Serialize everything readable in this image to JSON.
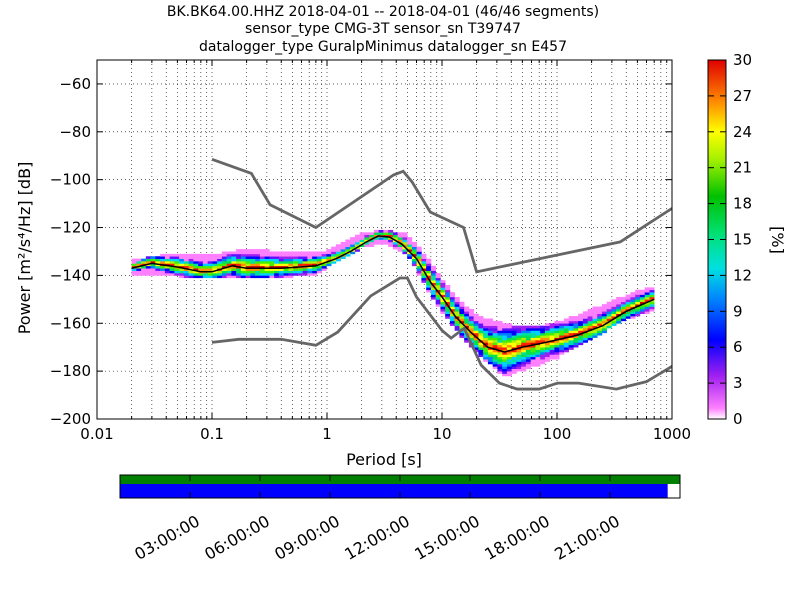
{
  "chart_data": {
    "type": "heatmap",
    "title_lines": [
      "BK.BK64.00.HHZ   2018-04-01 -- 2018-04-01  (46/46 segments)",
      "sensor_type CMG-3T sensor_sn T39747",
      "datalogger_type GuralpMinimus datalogger_sn E457"
    ],
    "xlabel": "Period [s]",
    "ylabel": "Power [m²/s⁴/Hz] [dB]",
    "xscale": "log",
    "xlim": [
      0.01,
      1000
    ],
    "ylim": [
      -200,
      -50
    ],
    "xticks": [
      {
        "value": 0.01,
        "label": "0.01"
      },
      {
        "value": 0.1,
        "label": "0.1"
      },
      {
        "value": 1,
        "label": "1"
      },
      {
        "value": 10,
        "label": "10"
      },
      {
        "value": 100,
        "label": "100"
      },
      {
        "value": 1000,
        "label": "1000"
      }
    ],
    "yticks": [
      {
        "value": -60,
        "label": "−60"
      },
      {
        "value": -80,
        "label": "−80"
      },
      {
        "value": -100,
        "label": "−100"
      },
      {
        "value": -120,
        "label": "−120"
      },
      {
        "value": -140,
        "label": "−140"
      },
      {
        "value": -160,
        "label": "−160"
      },
      {
        "value": -180,
        "label": "−180"
      },
      {
        "value": -200,
        "label": "−200"
      }
    ],
    "grid": true,
    "colorbar": {
      "label": "[%]",
      "range": [
        0,
        30
      ],
      "ticks": [
        {
          "value": 0,
          "label": "0"
        },
        {
          "value": 3,
          "label": "3"
        },
        {
          "value": 6,
          "label": "6"
        },
        {
          "value": 9,
          "label": "9"
        },
        {
          "value": 12,
          "label": "12"
        },
        {
          "value": 15,
          "label": "15"
        },
        {
          "value": 18,
          "label": "18"
        },
        {
          "value": 21,
          "label": "21"
        },
        {
          "value": 24,
          "label": "24"
        },
        {
          "value": 27,
          "label": "27"
        },
        {
          "value": 30,
          "label": "30"
        }
      ],
      "colormap": "pqlx"
    },
    "noise_models": [
      {
        "name": "high-noise-model",
        "color": "#666666",
        "points": [
          [
            0.1,
            -91.5
          ],
          [
            0.22,
            -97.4
          ],
          [
            0.32,
            -110.5
          ],
          [
            0.8,
            -120
          ],
          [
            3.8,
            -98
          ],
          [
            4.6,
            -96.5
          ],
          [
            5.5,
            -101
          ],
          [
            7.9,
            -113.5
          ],
          [
            15.4,
            -120
          ],
          [
            20,
            -138.5
          ],
          [
            354.8,
            -126
          ],
          [
            1000,
            -112
          ]
        ]
      },
      {
        "name": "low-noise-model",
        "color": "#666666",
        "points": [
          [
            0.1,
            -168
          ],
          [
            0.17,
            -166.7
          ],
          [
            0.4,
            -166.7
          ],
          [
            0.8,
            -169.2
          ],
          [
            1.24,
            -163.7
          ],
          [
            2.4,
            -148.6
          ],
          [
            4.3,
            -141.1
          ],
          [
            5,
            -141.1
          ],
          [
            6,
            -149
          ],
          [
            10,
            -163
          ],
          [
            12,
            -166.2
          ],
          [
            15.6,
            -162.1
          ],
          [
            21.9,
            -177.5
          ],
          [
            31.6,
            -185
          ],
          [
            45,
            -187.5
          ],
          [
            70,
            -187.5
          ],
          [
            101,
            -185
          ],
          [
            154,
            -185
          ],
          [
            328,
            -187.5
          ],
          [
            600,
            -184.4
          ],
          [
            1000,
            -178
          ]
        ]
      }
    ],
    "mode_curve": {
      "name": "mode",
      "points": [
        [
          0.02,
          -137
        ],
        [
          0.03,
          -135
        ],
        [
          0.05,
          -136.5
        ],
        [
          0.08,
          -138.5
        ],
        [
          0.1,
          -138.5
        ],
        [
          0.15,
          -136
        ],
        [
          0.2,
          -137
        ],
        [
          0.4,
          -137
        ],
        [
          0.8,
          -136
        ],
        [
          1.2,
          -133
        ],
        [
          1.6,
          -130
        ],
        [
          2.2,
          -126
        ],
        [
          2.8,
          -123.5
        ],
        [
          3.5,
          -124
        ],
        [
          4.5,
          -127
        ],
        [
          6,
          -133
        ],
        [
          8,
          -143
        ],
        [
          10,
          -149
        ],
        [
          13,
          -157
        ],
        [
          18,
          -164
        ],
        [
          25,
          -170
        ],
        [
          35,
          -172
        ],
        [
          50,
          -170
        ],
        [
          80,
          -168
        ],
        [
          150,
          -165
        ],
        [
          250,
          -161
        ],
        [
          400,
          -155
        ],
        [
          700,
          -150
        ]
      ]
    },
    "psd_distribution": {
      "description_spread_db_low": [
        [
          0.02,
          -139
        ],
        [
          0.05,
          -140
        ],
        [
          0.1,
          -141
        ],
        [
          0.3,
          -141
        ],
        [
          0.8,
          -139
        ],
        [
          2,
          -128
        ],
        [
          3,
          -126
        ],
        [
          5,
          -131
        ],
        [
          8,
          -148
        ],
        [
          12,
          -160
        ],
        [
          20,
          -172
        ],
        [
          35,
          -182
        ],
        [
          60,
          -178
        ],
        [
          100,
          -174
        ],
        [
          200,
          -166
        ],
        [
          400,
          -158
        ],
        [
          700,
          -154
        ]
      ],
      "description_spread_db_high": [
        [
          0.02,
          -135
        ],
        [
          0.05,
          -132
        ],
        [
          0.1,
          -133
        ],
        [
          0.2,
          -130
        ],
        [
          0.5,
          -132
        ],
        [
          1,
          -131
        ],
        [
          2,
          -124
        ],
        [
          3,
          -122
        ],
        [
          5,
          -124
        ],
        [
          8,
          -136
        ],
        [
          12,
          -148
        ],
        [
          20,
          -158
        ],
        [
          40,
          -162
        ],
        [
          80,
          -162
        ],
        [
          150,
          -158
        ],
        [
          300,
          -152
        ],
        [
          500,
          -148
        ],
        [
          700,
          -146
        ]
      ]
    },
    "time_coverage": {
      "tick_labels": [
        "03:00:00",
        "06:00:00",
        "09:00:00",
        "12:00:00",
        "15:00:00",
        "18:00:00",
        "21:00:00"
      ],
      "data_coverage_fraction": 1.0,
      "psd_coverage_fraction": 0.978,
      "data_color": "#008000",
      "psd_color": "#0000ff"
    }
  }
}
